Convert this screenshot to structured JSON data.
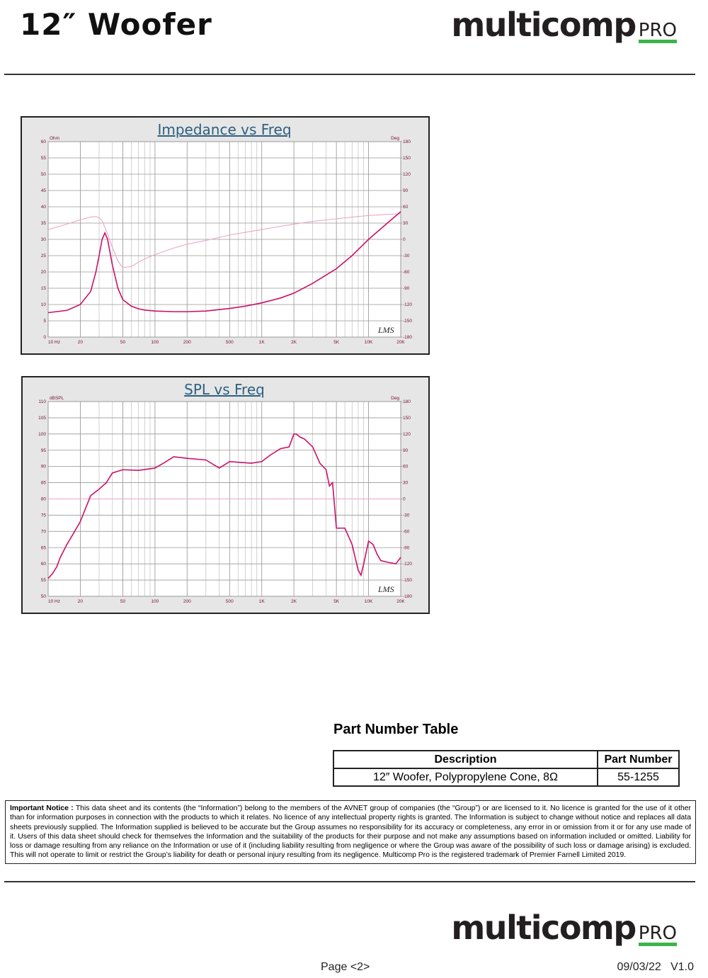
{
  "header": {
    "title": "12″ Woofer",
    "logo": "multicomp",
    "logo_suffix": "PRO"
  },
  "chart_data": [
    {
      "type": "line",
      "title": "Impedance vs Freq",
      "y_label": "Ohm",
      "y2_label": "Deg",
      "watermark": "LMS",
      "xscale": "log",
      "grid": true,
      "xlim": [
        10,
        20000
      ],
      "xticks": [
        {
          "value": 10,
          "label": "10 Hz"
        },
        20,
        50,
        100,
        200,
        500,
        {
          "value": 1000,
          "label": "1K"
        },
        {
          "value": 2000,
          "label": "2K"
        },
        {
          "value": 5000,
          "label": "5K"
        },
        {
          "value": 10000,
          "label": "10K"
        },
        {
          "value": 20000,
          "label": "20K"
        }
      ],
      "ylim": [
        0,
        60
      ],
      "yticks": [
        0,
        5,
        10,
        15,
        20,
        25,
        30,
        35,
        40,
        45,
        50,
        55,
        60
      ],
      "y2lim": [
        -180,
        180
      ],
      "y2ticks": [
        -180,
        -150,
        -120,
        -90,
        -60,
        -30,
        0,
        30,
        60,
        90,
        120,
        150,
        180
      ],
      "x": [
        10,
        15,
        20,
        25,
        28,
        30,
        32,
        34,
        36,
        40,
        45,
        50,
        60,
        70,
        80,
        100,
        150,
        200,
        300,
        500,
        700,
        1000,
        1500,
        2000,
        3000,
        5000,
        7000,
        10000,
        15000,
        20000
      ],
      "series": [
        {
          "color": "#cc1166",
          "values": [
            7.5,
            8.2,
            10,
            14,
            20,
            25,
            30,
            32,
            30,
            22,
            15,
            11.5,
            9.5,
            8.7,
            8.3,
            8,
            7.8,
            7.8,
            8,
            8.8,
            9.5,
            10.5,
            12,
            13.5,
            16.5,
            21,
            25,
            30,
            35,
            38.5
          ]
        },
        {
          "color": "#eba6c8",
          "axis": "y2",
          "values": [
            18,
            28,
            36,
            41,
            42,
            40,
            34,
            22,
            10,
            -15,
            -40,
            -52,
            -50,
            -42,
            -36,
            -28,
            -16,
            -9,
            -2,
            8,
            13,
            18,
            24,
            28,
            33,
            38,
            41,
            44,
            46,
            47
          ]
        }
      ]
    },
    {
      "type": "line",
      "title": "SPL vs Freq",
      "y_label": "dBSPL",
      "y2_label": "Deg",
      "watermark": "LMS",
      "xscale": "log",
      "grid": true,
      "xlim": [
        10,
        20000
      ],
      "xticks": [
        {
          "value": 10,
          "label": "10 Hz"
        },
        20,
        50,
        100,
        200,
        500,
        {
          "value": 1000,
          "label": "1K"
        },
        {
          "value": 2000,
          "label": "2K"
        },
        {
          "value": 5000,
          "label": "5K"
        },
        {
          "value": 10000,
          "label": "10K"
        },
        {
          "value": 20000,
          "label": "20K"
        }
      ],
      "ylim": [
        50,
        110
      ],
      "yticks": [
        50,
        55,
        60,
        65,
        70,
        75,
        80,
        85,
        90,
        95,
        100,
        105,
        110
      ],
      "y2lim": [
        -180,
        180
      ],
      "y2ticks": [
        -180,
        -150,
        -120,
        -90,
        -60,
        -30,
        0,
        30,
        60,
        90,
        120,
        150,
        180
      ],
      "x": [
        10,
        11,
        12,
        13,
        15,
        17,
        20,
        25,
        30,
        35,
        40,
        50,
        70,
        100,
        120,
        150,
        200,
        300,
        400,
        500,
        600,
        800,
        1000,
        1200,
        1500,
        1800,
        2000,
        2100,
        2300,
        2500,
        3000,
        3500,
        4000,
        4300,
        4600,
        5000,
        5500,
        6000,
        7000,
        8000,
        8500,
        9000,
        10000,
        11000,
        12000,
        13000,
        15000,
        18000,
        20000
      ],
      "series": [
        {
          "color": "#cc1166",
          "values": [
            55.5,
            57,
            59,
            62,
            66,
            69,
            73,
            81,
            83,
            85,
            88,
            89,
            88.8,
            89.5,
            91,
            93,
            92.5,
            92,
            89.5,
            91.5,
            91.3,
            91,
            91.5,
            93.5,
            95.5,
            96,
            100,
            100,
            99,
            98.5,
            96,
            91,
            89,
            84,
            85,
            71,
            71,
            71,
            66,
            58,
            56.5,
            60,
            67,
            66,
            63,
            61,
            60.5,
            60,
            62
          ]
        },
        {
          "color": "#eba6c8",
          "axis": "y2",
          "x": [
            10,
            20000
          ],
          "values": [
            0,
            0
          ]
        }
      ]
    }
  ],
  "part_table": {
    "title": "Part Number Table",
    "columns": [
      "Description",
      "Part Number"
    ],
    "rows": [
      [
        "12″ Woofer, Polypropylene Cone, 8Ω",
        "55-1255"
      ]
    ]
  },
  "notice": {
    "label": "Important Notice :",
    "text": "This data sheet and its contents (the “Information”) belong to the members of the AVNET group of companies (the “Group”) or are licensed to it. No licence is granted for the use of it other than for information purposes in connection with the products to which it relates. No licence of any intellectual property rights is granted. The Information is subject to change without notice and replaces all data sheets previously supplied. The Information supplied is believed to be accurate but the Group assumes no responsibility for its accuracy or completeness, any error in or omission from it or for any use made of it. Users of this data sheet should check for themselves the Information and the suitability of the products for their purpose and not make any assumptions based on information included or omitted. Liability for loss or damage resulting from any reliance on the Information or use of it (including liability resulting from negligence or where the Group was aware of the possibility of such loss or damage arising) is excluded. This will not operate to limit or restrict the Group’s liability for death or personal injury resulting from its negligence. Multicomp Pro is the registered trademark of Premier Farnell Limited 2019."
  },
  "footer": {
    "logo": "multicomp",
    "logo_suffix": "PRO",
    "page": "Page <2>",
    "date": "09/03/22",
    "version": "V1.0"
  }
}
